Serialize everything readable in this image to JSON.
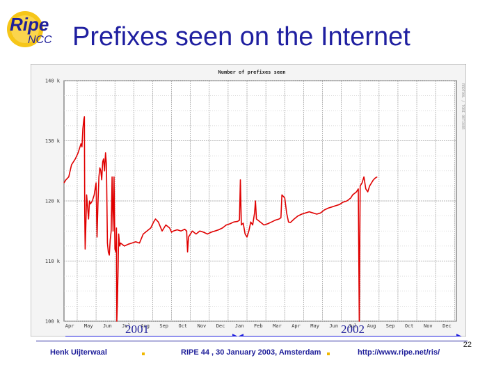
{
  "logo": {
    "word1": "Ripe",
    "word2": "NCC"
  },
  "slide": {
    "title": "Prefixes seen on the Internet",
    "page_number": "22"
  },
  "chart_data": {
    "type": "line",
    "title": "Number of prefixes seen",
    "side_label": "RRDTOOL / TOBI OETIKER",
    "xlabel": "",
    "ylabel": "",
    "ylim": [
      100000,
      140000
    ],
    "y_ticks": [
      100000,
      110000,
      120000,
      130000,
      140000
    ],
    "y_tick_labels": [
      "100 k",
      "110 k",
      "120 k",
      "130 k",
      "140 k"
    ],
    "x_tick_labels": [
      "Apr",
      "May",
      "Jun",
      "Jul",
      "Aug",
      "Sep",
      "Oct",
      "Nov",
      "Dec",
      "Jan",
      "Feb",
      "Mar",
      "Apr",
      "May",
      "Jun",
      "Jul",
      "Aug",
      "Sep",
      "Oct",
      "Nov",
      "Dec"
    ],
    "line_color": "#e00000",
    "grid": true,
    "series": [
      {
        "values": [
          [
            0,
            123000
          ],
          [
            0.1,
            123500
          ],
          [
            0.25,
            124000
          ],
          [
            0.4,
            126000
          ],
          [
            0.6,
            127000
          ],
          [
            0.75,
            128000
          ],
          [
            0.85,
            129000
          ],
          [
            0.9,
            129500
          ],
          [
            0.95,
            129000
          ],
          [
            1.0,
            132000
          ],
          [
            1.05,
            133500
          ],
          [
            1.08,
            134000
          ],
          [
            1.1,
            118000
          ],
          [
            1.12,
            112000
          ],
          [
            1.15,
            115000
          ],
          [
            1.2,
            121000
          ],
          [
            1.25,
            119000
          ],
          [
            1.3,
            117000
          ],
          [
            1.35,
            120000
          ],
          [
            1.4,
            119500
          ],
          [
            1.5,
            120000
          ],
          [
            1.6,
            121000
          ],
          [
            1.7,
            123000
          ],
          [
            1.75,
            114000
          ],
          [
            1.8,
            119500
          ],
          [
            1.85,
            124000
          ],
          [
            1.9,
            125500
          ],
          [
            1.95,
            125000
          ],
          [
            2.0,
            123500
          ],
          [
            2.05,
            126500
          ],
          [
            2.1,
            127000
          ],
          [
            2.15,
            125000
          ],
          [
            2.2,
            128000
          ],
          [
            2.25,
            126000
          ],
          [
            2.3,
            113000
          ],
          [
            2.35,
            111500
          ],
          [
            2.4,
            111000
          ],
          [
            2.45,
            113500
          ],
          [
            2.5,
            115000
          ],
          [
            2.55,
            124000
          ],
          [
            2.6,
            115000
          ],
          [
            2.65,
            124000
          ],
          [
            2.7,
            112000
          ],
          [
            2.75,
            111500
          ],
          [
            2.78,
            115500
          ],
          [
            2.8,
            100000
          ],
          [
            2.83,
            103000
          ],
          [
            2.87,
            109000
          ],
          [
            2.9,
            114500
          ],
          [
            2.95,
            112500
          ],
          [
            3.0,
            113000
          ],
          [
            3.2,
            112500
          ],
          [
            3.4,
            112800
          ],
          [
            3.6,
            113000
          ],
          [
            3.8,
            113200
          ],
          [
            4.0,
            113000
          ],
          [
            4.2,
            114500
          ],
          [
            4.4,
            115000
          ],
          [
            4.6,
            115500
          ],
          [
            4.75,
            116500
          ],
          [
            4.85,
            117000
          ],
          [
            5.0,
            116500
          ],
          [
            5.2,
            115000
          ],
          [
            5.4,
            116000
          ],
          [
            5.6,
            115500
          ],
          [
            5.7,
            114800
          ],
          [
            5.8,
            115000
          ],
          [
            6.0,
            115200
          ],
          [
            6.2,
            115000
          ],
          [
            6.4,
            115300
          ],
          [
            6.5,
            115000
          ],
          [
            6.55,
            111500
          ],
          [
            6.6,
            114000
          ],
          [
            6.8,
            115000
          ],
          [
            7.0,
            114500
          ],
          [
            7.2,
            115000
          ],
          [
            7.4,
            114800
          ],
          [
            7.6,
            114500
          ],
          [
            7.8,
            114800
          ],
          [
            8.0,
            115000
          ],
          [
            8.2,
            115200
          ],
          [
            8.4,
            115500
          ],
          [
            8.6,
            116000
          ],
          [
            8.8,
            116200
          ],
          [
            9.0,
            116500
          ],
          [
            9.2,
            116600
          ],
          [
            9.3,
            116800
          ],
          [
            9.35,
            123500
          ],
          [
            9.4,
            116000
          ],
          [
            9.5,
            116300
          ],
          [
            9.6,
            114500
          ],
          [
            9.7,
            114000
          ],
          [
            9.8,
            115000
          ],
          [
            9.9,
            116500
          ],
          [
            10.0,
            116000
          ],
          [
            10.1,
            118000
          ],
          [
            10.15,
            120000
          ],
          [
            10.2,
            117000
          ],
          [
            10.4,
            116500
          ],
          [
            10.6,
            116000
          ],
          [
            10.8,
            116200
          ],
          [
            11.0,
            116500
          ],
          [
            11.2,
            116800
          ],
          [
            11.4,
            117000
          ],
          [
            11.5,
            117200
          ],
          [
            11.55,
            121000
          ],
          [
            11.7,
            120500
          ],
          [
            11.8,
            118000
          ],
          [
            11.9,
            116500
          ],
          [
            12.0,
            116400
          ],
          [
            12.2,
            117000
          ],
          [
            12.4,
            117500
          ],
          [
            12.6,
            117800
          ],
          [
            12.8,
            118000
          ],
          [
            13.0,
            118200
          ],
          [
            13.2,
            118000
          ],
          [
            13.4,
            117800
          ],
          [
            13.6,
            118000
          ],
          [
            13.8,
            118500
          ],
          [
            14.0,
            118800
          ],
          [
            14.2,
            119000
          ],
          [
            14.4,
            119200
          ],
          [
            14.6,
            119400
          ],
          [
            14.8,
            119800
          ],
          [
            15.0,
            120000
          ],
          [
            15.2,
            120500
          ],
          [
            15.3,
            121000
          ],
          [
            15.5,
            121500
          ],
          [
            15.6,
            122000
          ],
          [
            15.65,
            100000
          ],
          [
            15.7,
            122500
          ],
          [
            15.8,
            123000
          ],
          [
            15.9,
            124000
          ],
          [
            16.0,
            122000
          ],
          [
            16.1,
            121500
          ],
          [
            16.2,
            122500
          ],
          [
            16.3,
            123000
          ],
          [
            16.4,
            123500
          ],
          [
            16.5,
            123800
          ],
          [
            16.6,
            124000
          ]
        ]
      }
    ]
  },
  "annotations": {
    "year_2001": "2001",
    "year_2002": "2002"
  },
  "footer": {
    "author": "Henk Uijterwaal",
    "event": "RIPE 44 ,  30 January 2003, Amsterdam",
    "url": "http://www.ripe.net/ris/"
  },
  "colors": {
    "title": "#1f1fa0",
    "accent": "#f0b800",
    "line": "#e00000",
    "arrow": "#1f1fdd"
  }
}
